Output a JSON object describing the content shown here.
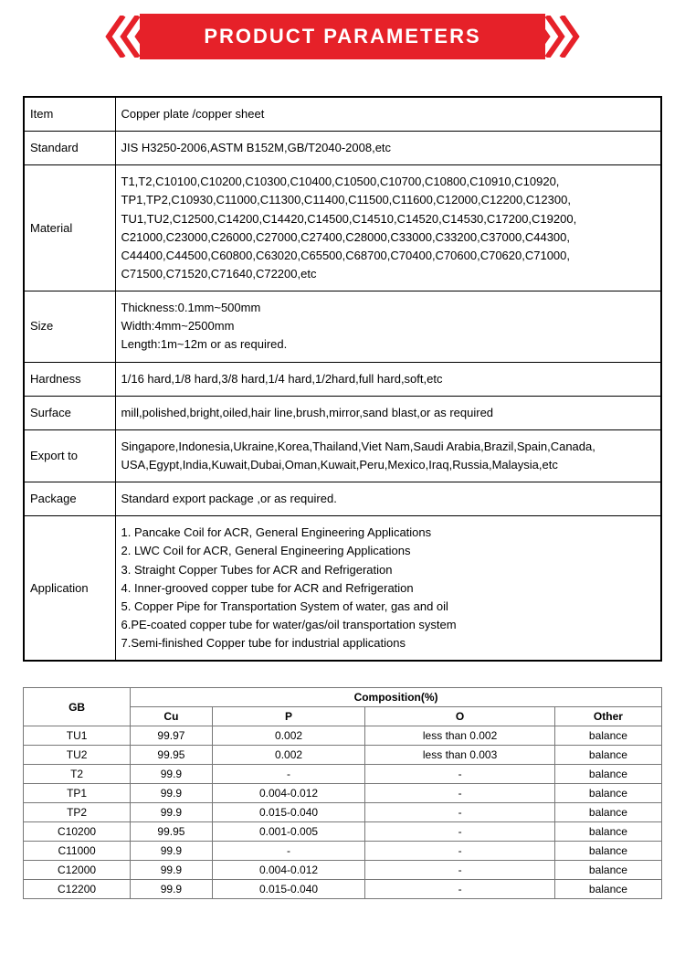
{
  "banner": {
    "title": "PRODUCT PARAMETERS",
    "bg": "#e62129",
    "fg": "#ffffff"
  },
  "spec": {
    "rows": [
      {
        "label": "Item",
        "value": "Copper plate /copper sheet"
      },
      {
        "label": "Standard",
        "value": "JIS H3250-2006,ASTM B152M,GB/T2040-2008,etc"
      },
      {
        "label": "Material",
        "value": "T1,T2,C10100,C10200,C10300,C10400,C10500,C10700,C10800,C10910,C10920, TP1,TP2,C10930,C11000,C11300,C11400,C11500,C11600,C12000,C12200,C12300, TU1,TU2,C12500,C14200,C14420,C14500,C14510,C14520,C14530,C17200,C19200, C21000,C23000,C26000,C27000,C27400,C28000,C33000,C33200,C37000,C44300, C44400,C44500,C60800,C63020,C65500,C68700,C70400,C70600,C70620,C71000, C71500,C71520,C71640,C72200,etc"
      },
      {
        "label": "Size",
        "value_html": "Thickness:0.1mm~500mm\nWidth:4mm~2500mm\nLength:1m~12m or as required."
      },
      {
        "label": "Hardness",
        "value": "1/16 hard,1/8 hard,3/8 hard,1/4 hard,1/2hard,full hard,soft,etc"
      },
      {
        "label": "Surface",
        "value": "mill,polished,bright,oiled,hair line,brush,mirror,sand blast,or as required"
      },
      {
        "label": "Export to",
        "value": "Singapore,Indonesia,Ukraine,Korea,Thailand,Viet Nam,Saudi Arabia,Brazil,Spain,Canada, USA,Egypt,India,Kuwait,Dubai,Oman,Kuwait,Peru,Mexico,Iraq,Russia,Malaysia,etc"
      },
      {
        "label": "Package",
        "value": "Standard export package ,or as required."
      },
      {
        "label": "Application",
        "value_html": "1. Pancake Coil for ACR, General Engineering Applications\n2. LWC Coil for ACR, General Engineering Applications\n3. Straight Copper Tubes for ACR and Refrigeration\n4. Inner-grooved copper tube for ACR and Refrigeration\n5. Copper Pipe for Transportation System of water, gas and oil\n6.PE-coated copper tube for water/gas/oil transportation system\n7.Semi-finished Copper tube for industrial applications"
      }
    ]
  },
  "comp": {
    "header_main": "GB",
    "header_group": "Composition(%)",
    "columns": [
      "Cu",
      "P",
      "O",
      "Other"
    ],
    "rows": [
      [
        "TU1",
        "99.97",
        "0.002",
        "less than 0.002",
        "balance"
      ],
      [
        "TU2",
        "99.95",
        "0.002",
        "less than 0.003",
        "balance"
      ],
      [
        "T2",
        "99.9",
        "-",
        "-",
        "balance"
      ],
      [
        "TP1",
        "99.9",
        "0.004-0.012",
        "-",
        "balance"
      ],
      [
        "TP2",
        "99.9",
        "0.015-0.040",
        "-",
        "balance"
      ],
      [
        "C10200",
        "99.95",
        "0.001-0.005",
        "-",
        "balance"
      ],
      [
        "C11000",
        "99.9",
        "-",
        "-",
        "balance"
      ],
      [
        "C12000",
        "99.9",
        "0.004-0.012",
        "-",
        "balance"
      ],
      [
        "C12200",
        "99.9",
        "0.015-0.040",
        "-",
        "balance"
      ]
    ]
  }
}
